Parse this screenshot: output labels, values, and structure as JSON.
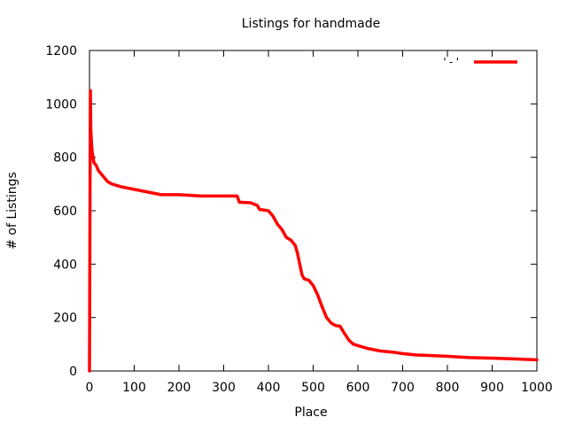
{
  "chart_data": {
    "type": "line",
    "title": "Listings for handmade",
    "xlabel": "Place",
    "ylabel": "# of Listings",
    "xlim": [
      0,
      1000
    ],
    "ylim": [
      0,
      1200
    ],
    "x_ticks": [
      "0",
      "100",
      "200",
      "300",
      "400",
      "500",
      "600",
      "700",
      "800",
      "900",
      "1000"
    ],
    "y_ticks": [
      "0",
      "200",
      "400",
      "600",
      "800",
      "1000",
      "1200"
    ],
    "grid": false,
    "legend_position": "top-right",
    "series": [
      {
        "name": "'-'",
        "color": "#ff0000",
        "x": [
          0,
          1,
          2,
          3,
          4,
          5,
          6,
          8,
          10,
          15,
          20,
          30,
          40,
          50,
          70,
          100,
          130,
          160,
          200,
          250,
          300,
          330,
          335,
          360,
          375,
          380,
          400,
          410,
          420,
          430,
          440,
          450,
          460,
          465,
          470,
          475,
          480,
          490,
          500,
          510,
          520,
          530,
          540,
          550,
          560,
          570,
          575,
          580,
          590,
          600,
          620,
          650,
          680,
          700,
          730,
          760,
          800,
          850,
          900,
          950,
          1000
        ],
        "y": [
          0,
          530,
          1050,
          900,
          870,
          840,
          820,
          800,
          780,
          770,
          750,
          730,
          710,
          700,
          690,
          680,
          670,
          660,
          660,
          655,
          655,
          655,
          632,
          630,
          620,
          605,
          600,
          580,
          550,
          530,
          500,
          490,
          470,
          440,
          400,
          360,
          345,
          340,
          320,
          285,
          240,
          200,
          180,
          170,
          168,
          140,
          128,
          115,
          100,
          95,
          85,
          75,
          70,
          65,
          60,
          58,
          55,
          50,
          48,
          45,
          42
        ]
      }
    ]
  }
}
